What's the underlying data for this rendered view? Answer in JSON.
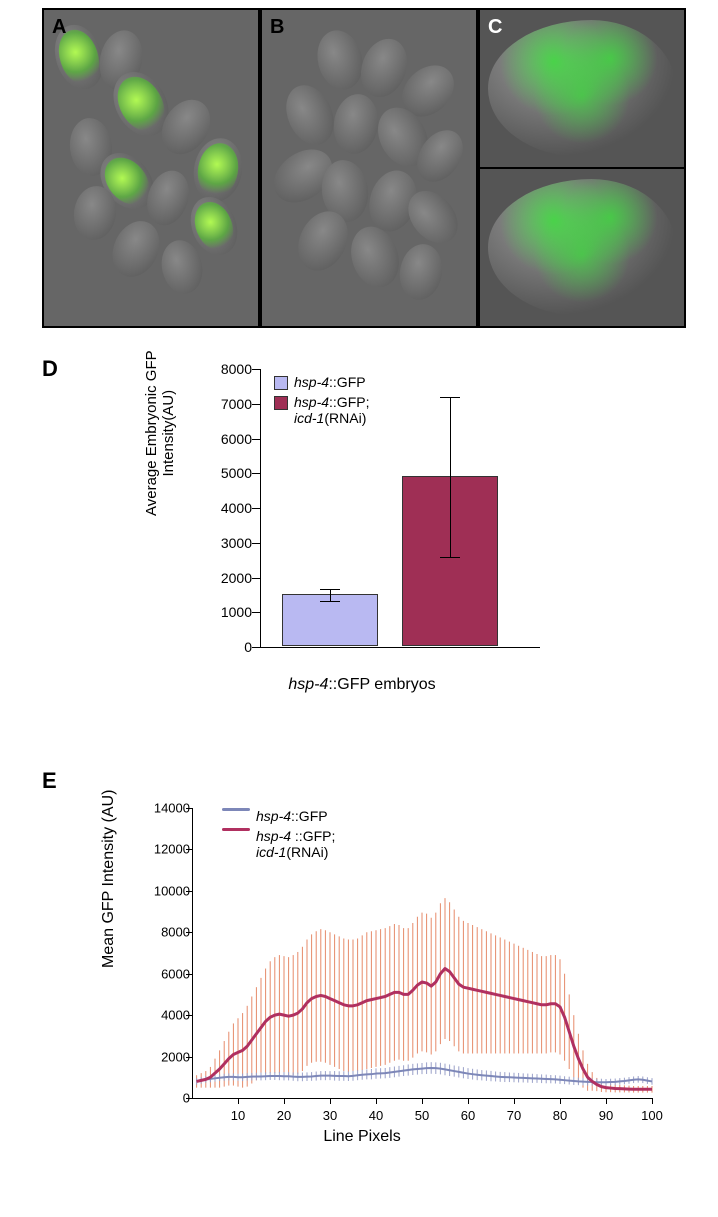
{
  "panels": {
    "A": "A",
    "B": "B",
    "C": "C",
    "D": "D",
    "E": "E"
  },
  "chartD": {
    "type": "bar",
    "ylabel": "Average Embryonic GFP\n Intensity(AU)",
    "xlabel_italic": "hsp-4",
    "xlabel_rest": "::GFP embryos",
    "ylim": [
      0,
      8000
    ],
    "ytick_step": 1000,
    "yticks": [
      0,
      1000,
      2000,
      3000,
      4000,
      5000,
      6000,
      7000,
      8000
    ],
    "bars": [
      {
        "key": "control",
        "value": 1500,
        "err": 180,
        "color": "#b9b9f2"
      },
      {
        "key": "rnai",
        "value": 4900,
        "err": 2300,
        "color": "#9f2f55"
      }
    ],
    "legend": {
      "control_italic": "hsp-4",
      "control_rest": "::GFP",
      "rnai_line1_italic": "hsp-4",
      "rnai_line1_rest": "::GFP;",
      "rnai_line2_italic": "icd-1",
      "rnai_line2_rest": "(RNAi)"
    },
    "title_fontsize": 15,
    "label_fontsize": 14,
    "background_color": "#ffffff"
  },
  "chartE": {
    "type": "line",
    "ylabel": "Mean GFP Intensity (AU)",
    "xlabel": "Line Pixels",
    "xlim": [
      0,
      100
    ],
    "ylim": [
      0,
      14000
    ],
    "xtick_step": 10,
    "ytick_step": 2000,
    "xticks": [
      10,
      20,
      30,
      40,
      50,
      60,
      70,
      80,
      90,
      100
    ],
    "yticks": [
      0,
      2000,
      4000,
      6000,
      8000,
      10000,
      12000,
      14000
    ],
    "legend": {
      "control_italic": "hsp-4",
      "control_rest": "::GFP",
      "rnai_line1_italic": "hsp-4 ",
      "rnai_line1_rest": "::GFP;",
      "rnai_line2_italic": "icd-1",
      "rnai_line2_rest": "(RNAi)"
    },
    "series_colors": {
      "control": "#7d87b8",
      "rnai": "#b03060"
    },
    "error_color": "#e68a6a",
    "line_width_control": 2,
    "line_width_rnai": 3,
    "control": {
      "y": [
        800,
        850,
        900,
        920,
        950,
        980,
        1000,
        1020,
        1020,
        1000,
        1000,
        1020,
        1030,
        1040,
        1040,
        1050,
        1060,
        1060,
        1060,
        1050,
        1050,
        1030,
        1020,
        1020,
        1030,
        1040,
        1060,
        1080,
        1080,
        1080,
        1070,
        1060,
        1060,
        1050,
        1070,
        1100,
        1120,
        1140,
        1150,
        1180,
        1190,
        1200,
        1230,
        1260,
        1290,
        1320,
        1350,
        1380,
        1400,
        1420,
        1440,
        1450,
        1440,
        1420,
        1380,
        1340,
        1300,
        1260,
        1220,
        1180,
        1150,
        1120,
        1100,
        1080,
        1060,
        1040,
        1020,
        1010,
        1000,
        990,
        980,
        970,
        960,
        950,
        940,
        930,
        920,
        910,
        900,
        880,
        860,
        840,
        820,
        800,
        790,
        780,
        770,
        760,
        760,
        760,
        770,
        780,
        800,
        820,
        850,
        880,
        900,
        880,
        840,
        800
      ],
      "err": [
        160,
        160,
        160,
        160,
        160,
        160,
        170,
        170,
        170,
        170,
        180,
        180,
        180,
        180,
        190,
        190,
        190,
        190,
        200,
        200,
        200,
        200,
        210,
        210,
        210,
        210,
        220,
        220,
        220,
        220,
        230,
        230,
        230,
        230,
        240,
        240,
        240,
        240,
        250,
        250,
        250,
        250,
        260,
        260,
        260,
        260,
        270,
        270,
        270,
        270,
        280,
        280,
        280,
        280,
        280,
        280,
        270,
        270,
        270,
        260,
        260,
        260,
        250,
        250,
        250,
        240,
        240,
        240,
        230,
        230,
        230,
        220,
        220,
        220,
        210,
        210,
        210,
        200,
        200,
        200,
        190,
        190,
        190,
        180,
        180,
        180,
        170,
        170,
        170,
        160,
        160,
        160,
        160,
        160,
        160,
        160,
        160,
        160,
        160,
        160
      ]
    },
    "rnai": {
      "y": [
        800,
        850,
        900,
        1000,
        1200,
        1400,
        1650,
        1900,
        2100,
        2200,
        2300,
        2500,
        2800,
        3100,
        3400,
        3700,
        3900,
        4000,
        4050,
        4000,
        3950,
        4000,
        4100,
        4300,
        4600,
        4800,
        4900,
        4950,
        4900,
        4800,
        4700,
        4600,
        4500,
        4450,
        4450,
        4500,
        4600,
        4700,
        4750,
        4800,
        4850,
        4900,
        5000,
        5100,
        5100,
        5000,
        5000,
        5200,
        5450,
        5600,
        5550,
        5400,
        5600,
        6000,
        6250,
        6100,
        5800,
        5500,
        5350,
        5300,
        5250,
        5200,
        5150,
        5100,
        5050,
        5000,
        4950,
        4900,
        4850,
        4800,
        4750,
        4700,
        4650,
        4600,
        4550,
        4500,
        4500,
        4550,
        4550,
        4400,
        3900,
        3200,
        2500,
        1900,
        1400,
        1000,
        800,
        650,
        550,
        500,
        480,
        460,
        450,
        440,
        430,
        420,
        420,
        420,
        420,
        420
      ],
      "err": [
        300,
        350,
        400,
        500,
        700,
        900,
        1100,
        1300,
        1500,
        1650,
        1800,
        1950,
        2100,
        2250,
        2400,
        2550,
        2700,
        2800,
        2850,
        2850,
        2850,
        2900,
        2950,
        3000,
        3050,
        3100,
        3150,
        3200,
        3200,
        3200,
        3200,
        3200,
        3200,
        3200,
        3200,
        3200,
        3250,
        3300,
        3300,
        3300,
        3300,
        3300,
        3300,
        3300,
        3250,
        3200,
        3200,
        3250,
        3300,
        3350,
        3350,
        3300,
        3350,
        3400,
        3400,
        3350,
        3300,
        3250,
        3200,
        3150,
        3100,
        3050,
        3000,
        2950,
        2900,
        2850,
        2800,
        2750,
        2700,
        2650,
        2600,
        2550,
        2500,
        2450,
        2400,
        2350,
        2350,
        2350,
        2350,
        2300,
        2100,
        1800,
        1500,
        1200,
        900,
        650,
        450,
        320,
        260,
        220,
        200,
        190,
        180,
        170,
        165,
        160,
        160,
        160,
        160,
        160
      ]
    }
  }
}
